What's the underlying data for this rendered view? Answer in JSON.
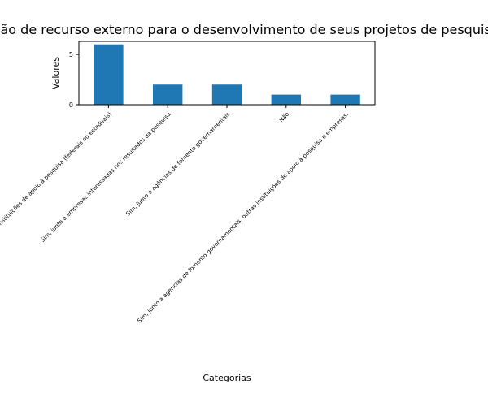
{
  "chart_data": {
    "type": "bar",
    "title": "Captação de recurso externo para o desenvolvimento de seus projetos de pesquisa",
    "xlabel": "Categorias",
    "ylabel": "Valores",
    "categories": [
      "Sim, junto a outras instituições de apoio à pesquisa (federais ou estaduais)",
      "Sim, junto a empresas interessadas nos resultados da pesquisa",
      "Sim, junto a agências de fomento governamentais",
      "Não",
      "Sim, junto a agencias de fomento governamentais, outras instituições de apoio à pesquisa e empresas."
    ],
    "values": [
      6,
      2,
      2,
      1,
      1
    ],
    "ylim": [
      0,
      6.3
    ],
    "yticks": [
      0,
      5
    ],
    "grid": false,
    "bar_color": "#1f77b4"
  }
}
